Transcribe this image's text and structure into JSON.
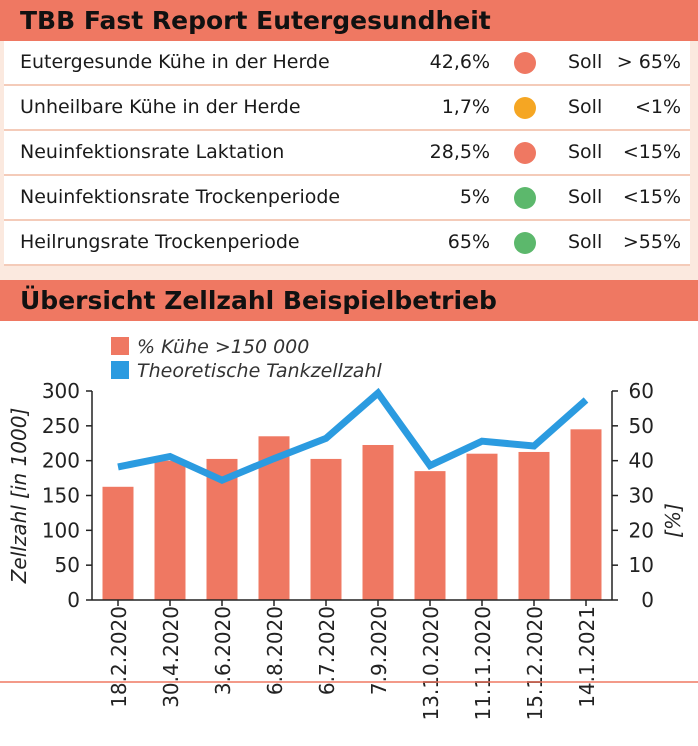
{
  "report": {
    "title": "TBB Fast Report Eutergesundheit",
    "rows": [
      {
        "label": "Eutergesunde Kühe in der Herde",
        "value": "42,6%",
        "status_color": "#ef7862",
        "soll": "Soll",
        "target": "> 65%"
      },
      {
        "label": "Unheilbare Kühe in der Herde",
        "value": "1,7%",
        "status_color": "#f5a623",
        "soll": "Soll",
        "target": "<1%"
      },
      {
        "label": "Neuinfektionsrate Laktation",
        "value": "28,5%",
        "status_color": "#ef7862",
        "soll": "Soll",
        "target": "<15%"
      },
      {
        "label": "Neuinfektionsrate Trockenperiode",
        "value": "5%",
        "status_color": "#5cb86c",
        "soll": "Soll",
        "target": "<15%"
      },
      {
        "label": "Heilrungsrate Trockenperiode",
        "value": "65%",
        "status_color": "#5cb86c",
        "soll": "Soll",
        "target": ">55%"
      }
    ]
  },
  "chart_section": {
    "title": "Übersicht Zellzahl Beispielbetrieb"
  },
  "chart_data": {
    "type": "bar",
    "categories": [
      "18.2.2020",
      "30.4.2020",
      "3.6.2020",
      "6.8.2020",
      "6.7.2020",
      "7.9.2020",
      "13.10.2020",
      "11.11.2020",
      "15.12.2020",
      "14.1.2021"
    ],
    "series": [
      {
        "name": "% Kühe >150 000",
        "type": "bar",
        "axis": "right",
        "color": "#ef7862",
        "values": [
          32.5,
          40,
          40.5,
          47,
          40.5,
          44.5,
          37,
          42,
          42.5,
          49
        ]
      },
      {
        "name": "Theoretische Tankzellzahl",
        "type": "line",
        "axis": "left",
        "color": "#2b9be0",
        "values": [
          191,
          206,
          172,
          203,
          232,
          297,
          193,
          228,
          221,
          287
        ]
      }
    ],
    "ylabel": "Zellzahl [in 1000]",
    "y2label": "[%]",
    "ylim": [
      0,
      300
    ],
    "y2lim": [
      0,
      60
    ],
    "yticks": [
      0,
      50,
      100,
      150,
      200,
      250,
      300
    ],
    "y2ticks": [
      0,
      10,
      20,
      30,
      40,
      50,
      60
    ],
    "legend_position": "top-left"
  }
}
